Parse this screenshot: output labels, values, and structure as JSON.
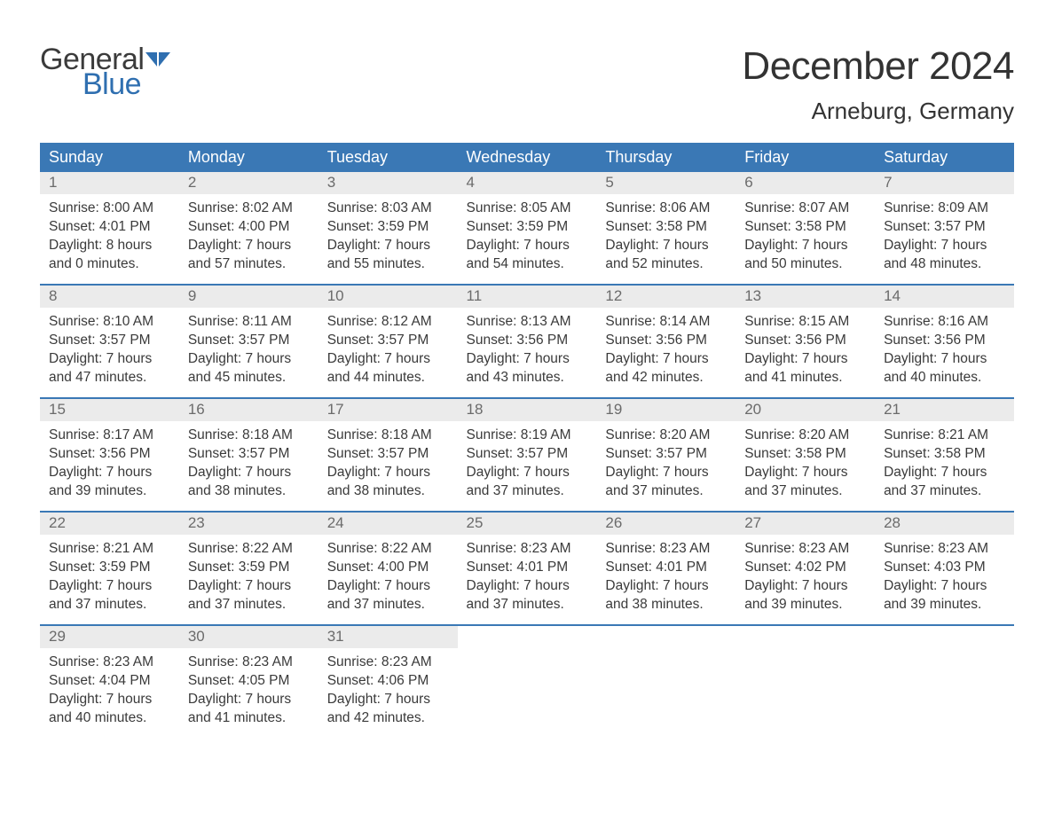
{
  "brand": {
    "line1": "General",
    "line2": "Blue",
    "text_color": "#3b3b3b",
    "accent_color": "#2f6fb0"
  },
  "title": "December 2024",
  "location": "Arneburg, Germany",
  "colors": {
    "header_bg": "#3a78b5",
    "header_text": "#ffffff",
    "daynum_bg": "#ebebeb",
    "daynum_text": "#6b6b6b",
    "body_text": "#3a3a3a",
    "page_bg": "#ffffff",
    "week_sep": "#3a78b5"
  },
  "typography": {
    "month_title_fontsize": 44,
    "location_fontsize": 26,
    "weekday_fontsize": 18,
    "daynum_fontsize": 17,
    "body_fontsize": 15.5
  },
  "weekdays": [
    "Sunday",
    "Monday",
    "Tuesday",
    "Wednesday",
    "Thursday",
    "Friday",
    "Saturday"
  ],
  "weeks": [
    [
      {
        "day": "1",
        "sunrise": "8:00 AM",
        "sunset": "4:01 PM",
        "daylight_h": "8",
        "daylight_m": "0"
      },
      {
        "day": "2",
        "sunrise": "8:02 AM",
        "sunset": "4:00 PM",
        "daylight_h": "7",
        "daylight_m": "57"
      },
      {
        "day": "3",
        "sunrise": "8:03 AM",
        "sunset": "3:59 PM",
        "daylight_h": "7",
        "daylight_m": "55"
      },
      {
        "day": "4",
        "sunrise": "8:05 AM",
        "sunset": "3:59 PM",
        "daylight_h": "7",
        "daylight_m": "54"
      },
      {
        "day": "5",
        "sunrise": "8:06 AM",
        "sunset": "3:58 PM",
        "daylight_h": "7",
        "daylight_m": "52"
      },
      {
        "day": "6",
        "sunrise": "8:07 AM",
        "sunset": "3:58 PM",
        "daylight_h": "7",
        "daylight_m": "50"
      },
      {
        "day": "7",
        "sunrise": "8:09 AM",
        "sunset": "3:57 PM",
        "daylight_h": "7",
        "daylight_m": "48"
      }
    ],
    [
      {
        "day": "8",
        "sunrise": "8:10 AM",
        "sunset": "3:57 PM",
        "daylight_h": "7",
        "daylight_m": "47"
      },
      {
        "day": "9",
        "sunrise": "8:11 AM",
        "sunset": "3:57 PM",
        "daylight_h": "7",
        "daylight_m": "45"
      },
      {
        "day": "10",
        "sunrise": "8:12 AM",
        "sunset": "3:57 PM",
        "daylight_h": "7",
        "daylight_m": "44"
      },
      {
        "day": "11",
        "sunrise": "8:13 AM",
        "sunset": "3:56 PM",
        "daylight_h": "7",
        "daylight_m": "43"
      },
      {
        "day": "12",
        "sunrise": "8:14 AM",
        "sunset": "3:56 PM",
        "daylight_h": "7",
        "daylight_m": "42"
      },
      {
        "day": "13",
        "sunrise": "8:15 AM",
        "sunset": "3:56 PM",
        "daylight_h": "7",
        "daylight_m": "41"
      },
      {
        "day": "14",
        "sunrise": "8:16 AM",
        "sunset": "3:56 PM",
        "daylight_h": "7",
        "daylight_m": "40"
      }
    ],
    [
      {
        "day": "15",
        "sunrise": "8:17 AM",
        "sunset": "3:56 PM",
        "daylight_h": "7",
        "daylight_m": "39"
      },
      {
        "day": "16",
        "sunrise": "8:18 AM",
        "sunset": "3:57 PM",
        "daylight_h": "7",
        "daylight_m": "38"
      },
      {
        "day": "17",
        "sunrise": "8:18 AM",
        "sunset": "3:57 PM",
        "daylight_h": "7",
        "daylight_m": "38"
      },
      {
        "day": "18",
        "sunrise": "8:19 AM",
        "sunset": "3:57 PM",
        "daylight_h": "7",
        "daylight_m": "37"
      },
      {
        "day": "19",
        "sunrise": "8:20 AM",
        "sunset": "3:57 PM",
        "daylight_h": "7",
        "daylight_m": "37"
      },
      {
        "day": "20",
        "sunrise": "8:20 AM",
        "sunset": "3:58 PM",
        "daylight_h": "7",
        "daylight_m": "37"
      },
      {
        "day": "21",
        "sunrise": "8:21 AM",
        "sunset": "3:58 PM",
        "daylight_h": "7",
        "daylight_m": "37"
      }
    ],
    [
      {
        "day": "22",
        "sunrise": "8:21 AM",
        "sunset": "3:59 PM",
        "daylight_h": "7",
        "daylight_m": "37"
      },
      {
        "day": "23",
        "sunrise": "8:22 AM",
        "sunset": "3:59 PM",
        "daylight_h": "7",
        "daylight_m": "37"
      },
      {
        "day": "24",
        "sunrise": "8:22 AM",
        "sunset": "4:00 PM",
        "daylight_h": "7",
        "daylight_m": "37"
      },
      {
        "day": "25",
        "sunrise": "8:23 AM",
        "sunset": "4:01 PM",
        "daylight_h": "7",
        "daylight_m": "37"
      },
      {
        "day": "26",
        "sunrise": "8:23 AM",
        "sunset": "4:01 PM",
        "daylight_h": "7",
        "daylight_m": "38"
      },
      {
        "day": "27",
        "sunrise": "8:23 AM",
        "sunset": "4:02 PM",
        "daylight_h": "7",
        "daylight_m": "39"
      },
      {
        "day": "28",
        "sunrise": "8:23 AM",
        "sunset": "4:03 PM",
        "daylight_h": "7",
        "daylight_m": "39"
      }
    ],
    [
      {
        "day": "29",
        "sunrise": "8:23 AM",
        "sunset": "4:04 PM",
        "daylight_h": "7",
        "daylight_m": "40"
      },
      {
        "day": "30",
        "sunrise": "8:23 AM",
        "sunset": "4:05 PM",
        "daylight_h": "7",
        "daylight_m": "41"
      },
      {
        "day": "31",
        "sunrise": "8:23 AM",
        "sunset": "4:06 PM",
        "daylight_h": "7",
        "daylight_m": "42"
      },
      null,
      null,
      null,
      null
    ]
  ],
  "labels": {
    "sunrise_prefix": "Sunrise: ",
    "sunset_prefix": "Sunset: ",
    "daylight_line1_prefix": "Daylight: ",
    "daylight_line1_suffix": " hours",
    "daylight_line2_prefix": "and ",
    "daylight_line2_suffix": " minutes."
  }
}
